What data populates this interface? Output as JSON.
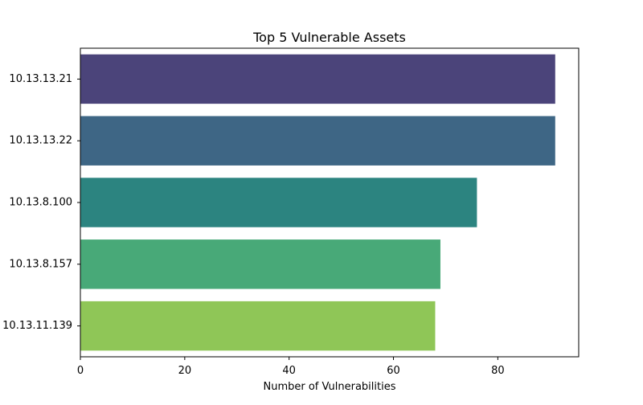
{
  "chart_data": {
    "type": "bar",
    "orientation": "horizontal",
    "title": "Top 5 Vulnerable Assets",
    "xlabel": "Number of Vulnerabilities",
    "ylabel": "",
    "categories": [
      "10.13.13.21",
      "10.13.13.22",
      "10.13.8.100",
      "10.13.8.157",
      "10.13.11.139"
    ],
    "values": [
      91,
      91,
      76,
      69,
      68
    ],
    "colors": [
      "#4b447a",
      "#3e6685",
      "#2c8480",
      "#48a978",
      "#8fc657"
    ],
    "xlim": [
      0,
      95.5
    ],
    "x_ticks": [
      0,
      20,
      40,
      60,
      80
    ],
    "grid": false,
    "legend": "none"
  }
}
